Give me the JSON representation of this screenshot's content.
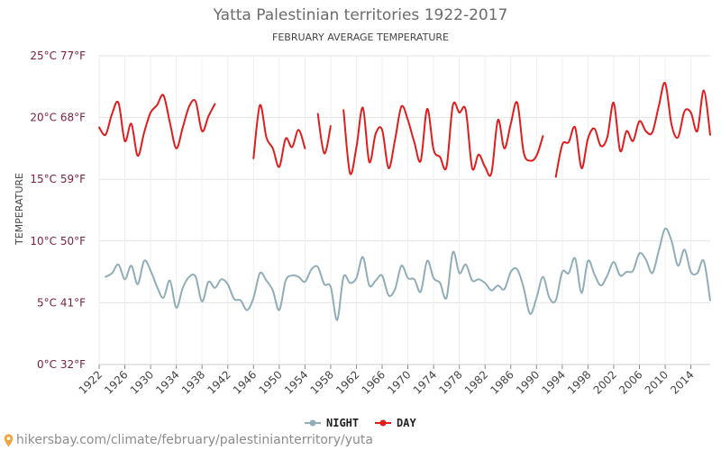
{
  "chart_data": {
    "type": "line",
    "title": "Yatta Palestinian territories 1922-2017",
    "subtitle": "FEBRUARY AVERAGE TEMPERATURE",
    "ylabel": "TEMPERATURE",
    "xlabel": "",
    "ylim": [
      0,
      25
    ],
    "xlim": [
      1922,
      2017
    ],
    "y_ticks": [
      {
        "value": 0,
        "label": "0°C 32°F"
      },
      {
        "value": 5,
        "label": "5°C 41°F"
      },
      {
        "value": 10,
        "label": "10°C 50°F"
      },
      {
        "value": 15,
        "label": "15°C 59°F"
      },
      {
        "value": 20,
        "label": "20°C 68°F"
      },
      {
        "value": 25,
        "label": "25°C 77°F"
      }
    ],
    "x_ticks": [
      1922,
      1926,
      1930,
      1934,
      1938,
      1942,
      1946,
      1950,
      1954,
      1958,
      1962,
      1966,
      1970,
      1974,
      1978,
      1982,
      1986,
      1990,
      1994,
      1998,
      2002,
      2006,
      2010,
      2014
    ],
    "grid": true,
    "legend_position": "bottom",
    "series": [
      {
        "name": "NIGHT",
        "color": "#90adb8",
        "x": [
          1923,
          1924,
          1925,
          1926,
          1927,
          1928,
          1929,
          1930,
          1931,
          1932,
          1933,
          1934,
          1935,
          1936,
          1937,
          1938,
          1939,
          1940,
          1941,
          1942,
          1943,
          1944,
          1945,
          1946,
          1947,
          1948,
          1949,
          1950,
          1951,
          1952,
          1953,
          1954,
          1955,
          1956,
          1957,
          1958,
          1959,
          1960,
          1961,
          1962,
          1963,
          1964,
          1965,
          1966,
          1967,
          1968,
          1969,
          1970,
          1971,
          1972,
          1973,
          1974,
          1975,
          1976,
          1977,
          1978,
          1979,
          1980,
          1981,
          1982,
          1983,
          1984,
          1985,
          1986,
          1987,
          1988,
          1989,
          1990,
          1991,
          1992,
          1993,
          1994,
          1995,
          1996,
          1997,
          1998,
          1999,
          2000,
          2001,
          2002,
          2003,
          2004,
          2005,
          2006,
          2007,
          2008,
          2009,
          2010,
          2011,
          2012,
          2013,
          2014,
          2015,
          2016,
          2017
        ],
        "values": [
          7.1,
          7.4,
          8.1,
          6.9,
          8.0,
          6.5,
          8.4,
          7.6,
          6.3,
          5.4,
          6.8,
          4.6,
          6.2,
          7.1,
          7.1,
          5.1,
          6.7,
          6.2,
          6.9,
          6.5,
          5.3,
          5.2,
          4.4,
          5.4,
          7.4,
          6.8,
          6.0,
          4.4,
          6.8,
          7.2,
          7.1,
          6.7,
          7.7,
          7.9,
          6.5,
          6.3,
          3.6,
          7.1,
          6.6,
          7.0,
          8.7,
          6.4,
          6.8,
          7.2,
          5.6,
          6.1,
          8.0,
          7.0,
          6.9,
          5.9,
          8.4,
          7.0,
          6.6,
          5.4,
          9.1,
          7.4,
          8.1,
          6.8,
          6.9,
          6.6,
          6.0,
          6.4,
          6.1,
          7.5,
          7.7,
          6.2,
          4.1,
          5.4,
          7.1,
          5.4,
          5.2,
          7.5,
          7.4,
          8.6,
          5.8,
          8.4,
          7.3,
          6.4,
          7.2,
          8.3,
          7.2,
          7.5,
          7.6,
          9.0,
          8.5,
          7.4,
          9.2,
          11.0,
          10.0,
          8.0,
          9.3,
          7.5,
          7.4,
          8.4,
          5.2
        ]
      },
      {
        "name": "DAY",
        "color": "#e01d1d",
        "x": [
          1922,
          1923,
          1924,
          1925,
          1926,
          1927,
          1928,
          1929,
          1930,
          1931,
          1932,
          1933,
          1934,
          1935,
          1936,
          1937,
          1938,
          1939,
          1940,
          null,
          1946,
          1947,
          1948,
          1949,
          1950,
          1951,
          1952,
          1953,
          1954,
          null,
          1956,
          1957,
          1958,
          null,
          1960,
          1961,
          1962,
          1963,
          1964,
          1965,
          1966,
          1967,
          1968,
          1969,
          1970,
          1971,
          1972,
          1973,
          1974,
          1975,
          1976,
          1977,
          1978,
          1979,
          1980,
          1981,
          1982,
          1983,
          1984,
          1985,
          1986,
          1987,
          1988,
          1989,
          1990,
          1991,
          null,
          1993,
          1994,
          1995,
          1996,
          1997,
          1998,
          1999,
          2000,
          2001,
          2002,
          2003,
          2004,
          2005,
          2006,
          2007,
          2008,
          2009,
          2010,
          2011,
          2012,
          2013,
          2014,
          2015,
          2016,
          2017
        ],
        "values": [
          19.2,
          18.6,
          20.3,
          21.2,
          18.1,
          19.5,
          16.9,
          18.8,
          20.4,
          21.0,
          21.8,
          19.6,
          17.5,
          19.2,
          20.9,
          21.3,
          18.9,
          20.1,
          21.1,
          null,
          16.7,
          21.0,
          18.4,
          17.5,
          16.0,
          18.3,
          17.6,
          19.0,
          17.5,
          null,
          20.3,
          17.1,
          19.3,
          null,
          20.6,
          15.5,
          17.6,
          20.8,
          16.4,
          18.7,
          19.0,
          15.9,
          18.2,
          20.9,
          19.8,
          18.0,
          16.5,
          20.7,
          17.4,
          16.8,
          16.0,
          21.0,
          20.4,
          20.6,
          15.9,
          17.0,
          16.0,
          15.5,
          19.8,
          17.5,
          19.5,
          21.2,
          17.2,
          16.5,
          16.9,
          18.5,
          null,
          15.2,
          17.8,
          18.0,
          19.2,
          15.9,
          18.3,
          19.1,
          17.7,
          18.4,
          21.2,
          17.3,
          18.9,
          18.1,
          19.7,
          18.9,
          18.8,
          20.9,
          22.8,
          19.4,
          18.4,
          20.5,
          20.4,
          18.9,
          22.2,
          18.6
        ]
      }
    ]
  },
  "footer": {
    "url_text": "hikersbay.com/climate/february/palestinianterritory/yuta",
    "pin_color": "#f2a33a"
  }
}
